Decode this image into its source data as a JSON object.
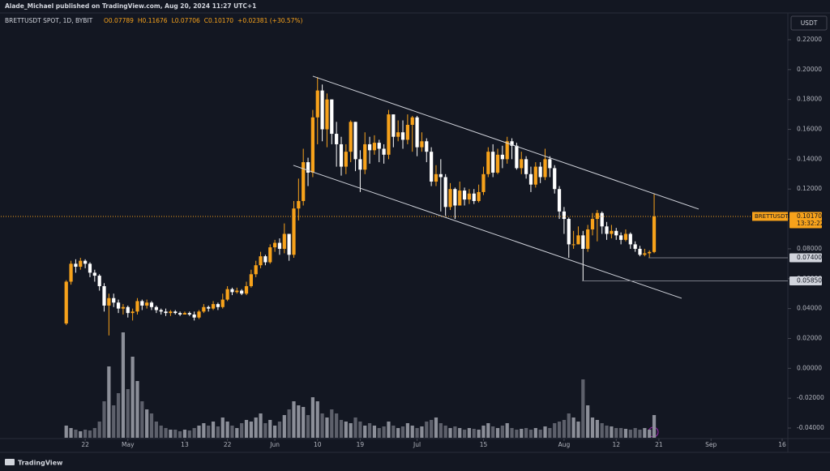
{
  "chart_data": {
    "type": "candlestick",
    "published": "Alade_Michael published on TradingView.com, Aug 20, 2024 11:27 UTC+1",
    "symbol": "BRETTUSDT SPOT, 1D, BYBIT",
    "legend_values": [
      "O0.07789",
      "H0.11676",
      "L0.07706",
      "C0.10170",
      "+0.02381 (+30.57%)"
    ],
    "currency": "USDT",
    "footer": "TradingView",
    "up_color": "#f7a21b",
    "down_color": "#ffffff",
    "volume_up_color": "#8c8f99",
    "volume_down_color": "#5d606b",
    "open": [
      0.03,
      0.058,
      0.07,
      0.068,
      0.072,
      0.07,
      0.064,
      0.062,
      0.055,
      0.042,
      0.047,
      0.044,
      0.04,
      0.041,
      0.037,
      0.038,
      0.045,
      0.042,
      0.044,
      0.041,
      0.039,
      0.038,
      0.037,
      0.038,
      0.037,
      0.036,
      0.037,
      0.036,
      0.034,
      0.038,
      0.041,
      0.04,
      0.043,
      0.041,
      0.046,
      0.053,
      0.051,
      0.052,
      0.05,
      0.055,
      0.063,
      0.069,
      0.075,
      0.071,
      0.081,
      0.084,
      0.08,
      0.09,
      0.076,
      0.107,
      0.112,
      0.138,
      0.131,
      0.168,
      0.186,
      0.16,
      0.18,
      0.157,
      0.15,
      0.135,
      0.145,
      0.165,
      0.14,
      0.133,
      0.15,
      0.146,
      0.151,
      0.147,
      0.143,
      0.17,
      0.155,
      0.158,
      0.153,
      0.163,
      0.168,
      0.148,
      0.152,
      0.145,
      0.125,
      0.13,
      0.128,
      0.108,
      0.12,
      0.109,
      0.119,
      0.113,
      0.117,
      0.112,
      0.118,
      0.13,
      0.145,
      0.131,
      0.143,
      0.14,
      0.152,
      0.149,
      0.134,
      0.14,
      0.13,
      0.123,
      0.135,
      0.128,
      0.14,
      0.134,
      0.12,
      0.105,
      0.1,
      0.083,
      0.083,
      0.089,
      0.08,
      0.093,
      0.1,
      0.104,
      0.095,
      0.09,
      0.092,
      0.089,
      0.086,
      0.09,
      0.083,
      0.08,
      0.076,
      0.077,
      0.07789
    ],
    "high": [
      0.059,
      0.072,
      0.073,
      0.074,
      0.073,
      0.071,
      0.066,
      0.063,
      0.057,
      0.05,
      0.05,
      0.046,
      0.043,
      0.042,
      0.04,
      0.047,
      0.046,
      0.046,
      0.045,
      0.042,
      0.04,
      0.04,
      0.039,
      0.039,
      0.038,
      0.038,
      0.038,
      0.038,
      0.039,
      0.043,
      0.042,
      0.045,
      0.044,
      0.05,
      0.055,
      0.054,
      0.054,
      0.053,
      0.058,
      0.066,
      0.072,
      0.078,
      0.076,
      0.083,
      0.086,
      0.087,
      0.097,
      0.09,
      0.112,
      0.127,
      0.147,
      0.141,
      0.173,
      0.195,
      0.19,
      0.184,
      0.18,
      0.165,
      0.155,
      0.15,
      0.166,
      0.165,
      0.146,
      0.158,
      0.155,
      0.156,
      0.153,
      0.15,
      0.173,
      0.17,
      0.166,
      0.166,
      0.17,
      0.169,
      0.169,
      0.158,
      0.154,
      0.148,
      0.136,
      0.14,
      0.13,
      0.124,
      0.121,
      0.125,
      0.121,
      0.12,
      0.12,
      0.123,
      0.135,
      0.148,
      0.15,
      0.147,
      0.149,
      0.155,
      0.154,
      0.151,
      0.145,
      0.142,
      0.135,
      0.138,
      0.138,
      0.147,
      0.142,
      0.136,
      0.122,
      0.108,
      0.101,
      0.092,
      0.095,
      0.092,
      0.096,
      0.104,
      0.106,
      0.105,
      0.098,
      0.096,
      0.094,
      0.091,
      0.093,
      0.091,
      0.085,
      0.082,
      0.08,
      0.079,
      0.11676
    ],
    "low": [
      0.029,
      0.056,
      0.064,
      0.066,
      0.067,
      0.061,
      0.058,
      0.052,
      0.038,
      0.022,
      0.041,
      0.037,
      0.036,
      0.034,
      0.032,
      0.036,
      0.039,
      0.04,
      0.039,
      0.037,
      0.036,
      0.035,
      0.035,
      0.036,
      0.035,
      0.036,
      0.035,
      0.032,
      0.033,
      0.037,
      0.038,
      0.039,
      0.039,
      0.04,
      0.045,
      0.049,
      0.05,
      0.049,
      0.049,
      0.054,
      0.061,
      0.067,
      0.069,
      0.07,
      0.078,
      0.076,
      0.077,
      0.072,
      0.074,
      0.099,
      0.109,
      0.122,
      0.128,
      0.15,
      0.152,
      0.148,
      0.15,
      0.135,
      0.129,
      0.13,
      0.138,
      0.132,
      0.118,
      0.13,
      0.137,
      0.143,
      0.138,
      0.137,
      0.14,
      0.148,
      0.152,
      0.147,
      0.15,
      0.145,
      0.142,
      0.145,
      0.138,
      0.122,
      0.122,
      0.105,
      0.102,
      0.106,
      0.1,
      0.11,
      0.109,
      0.11,
      0.11,
      0.111,
      0.116,
      0.128,
      0.128,
      0.13,
      0.134,
      0.137,
      0.14,
      0.133,
      0.13,
      0.127,
      0.118,
      0.121,
      0.124,
      0.126,
      0.128,
      0.117,
      0.1,
      0.09,
      0.074,
      0.08,
      0.083,
      0.0585,
      0.078,
      0.089,
      0.085,
      0.09,
      0.086,
      0.087,
      0.086,
      0.083,
      0.085,
      0.08,
      0.078,
      0.075,
      0.075,
      0.074,
      0.07706
    ],
    "close": [
      0.058,
      0.07,
      0.068,
      0.072,
      0.07,
      0.064,
      0.062,
      0.055,
      0.042,
      0.047,
      0.044,
      0.04,
      0.041,
      0.037,
      0.038,
      0.045,
      0.042,
      0.044,
      0.041,
      0.039,
      0.038,
      0.037,
      0.038,
      0.037,
      0.036,
      0.037,
      0.036,
      0.034,
      0.038,
      0.041,
      0.04,
      0.043,
      0.041,
      0.046,
      0.053,
      0.051,
      0.052,
      0.05,
      0.055,
      0.063,
      0.069,
      0.075,
      0.071,
      0.081,
      0.084,
      0.08,
      0.09,
      0.076,
      0.107,
      0.112,
      0.138,
      0.131,
      0.168,
      0.186,
      0.16,
      0.18,
      0.157,
      0.15,
      0.135,
      0.145,
      0.165,
      0.14,
      0.133,
      0.15,
      0.146,
      0.151,
      0.147,
      0.143,
      0.17,
      0.155,
      0.158,
      0.153,
      0.163,
      0.168,
      0.148,
      0.152,
      0.145,
      0.125,
      0.13,
      0.128,
      0.108,
      0.12,
      0.109,
      0.119,
      0.113,
      0.117,
      0.112,
      0.118,
      0.13,
      0.145,
      0.131,
      0.143,
      0.14,
      0.152,
      0.149,
      0.134,
      0.14,
      0.13,
      0.123,
      0.135,
      0.128,
      0.14,
      0.134,
      0.12,
      0.105,
      0.1,
      0.083,
      0.083,
      0.089,
      0.08,
      0.093,
      0.1,
      0.104,
      0.095,
      0.09,
      0.092,
      0.089,
      0.086,
      0.09,
      0.083,
      0.08,
      0.076,
      0.077,
      0.07789,
      0.1017
    ],
    "volume": [
      15,
      12,
      10,
      8,
      10,
      9,
      12,
      20,
      45,
      88,
      40,
      55,
      130,
      60,
      100,
      70,
      45,
      35,
      30,
      20,
      15,
      12,
      10,
      10,
      8,
      10,
      9,
      12,
      15,
      18,
      15,
      20,
      14,
      25,
      20,
      15,
      12,
      18,
      22,
      20,
      25,
      30,
      18,
      22,
      15,
      20,
      28,
      35,
      45,
      40,
      38,
      28,
      50,
      45,
      30,
      25,
      35,
      30,
      22,
      20,
      18,
      25,
      20,
      15,
      18,
      15,
      12,
      14,
      20,
      15,
      12,
      14,
      18,
      15,
      12,
      14,
      20,
      22,
      25,
      18,
      15,
      12,
      14,
      12,
      10,
      12,
      11,
      10,
      15,
      18,
      14,
      12,
      15,
      18,
      12,
      10,
      11,
      12,
      10,
      12,
      10,
      14,
      12,
      18,
      20,
      22,
      30,
      25,
      20,
      72,
      40,
      25,
      22,
      18,
      15,
      14,
      12,
      12,
      11,
      10,
      12,
      10,
      12,
      10,
      28
    ],
    "xlim": [
      -13.8,
      152.2
    ],
    "xticks": [
      {
        "value": 4,
        "label": "22"
      },
      {
        "value": 13,
        "label": "May"
      },
      {
        "value": 25,
        "label": "13"
      },
      {
        "value": 34,
        "label": "22"
      },
      {
        "value": 44,
        "label": "Jun"
      },
      {
        "value": 53,
        "label": "10"
      },
      {
        "value": 62,
        "label": "19"
      },
      {
        "value": 74,
        "label": "Jul"
      },
      {
        "value": 88,
        "label": "15"
      },
      {
        "value": 105,
        "label": "Aug"
      },
      {
        "value": 116,
        "label": "12"
      },
      {
        "value": 125,
        "label": "21"
      },
      {
        "value": 136,
        "label": "Sep"
      },
      {
        "value": 151,
        "label": "16"
      }
    ],
    "ylim": [
      -0.0465,
      0.2379
    ],
    "yticks": [
      {
        "value": 0.22,
        "label": "0.22000"
      },
      {
        "value": 0.2,
        "label": "0.20000"
      },
      {
        "value": 0.18,
        "label": "0.18000"
      },
      {
        "value": 0.16,
        "label": "0.16000"
      },
      {
        "value": 0.14,
        "label": "0.14000"
      },
      {
        "value": 0.12,
        "label": "0.12000"
      },
      {
        "value": 0.1,
        "label": "0.10000"
      },
      {
        "value": 0.08,
        "label": "0.08000"
      },
      {
        "value": 0.06,
        "label": "0.06000"
      },
      {
        "value": 0.04,
        "label": "0.04000"
      },
      {
        "value": 0.02,
        "label": "0.02000"
      },
      {
        "value": 0,
        "label": "0.00000"
      },
      {
        "value": -0.02,
        "label": "-0.02000"
      },
      {
        "value": -0.04,
        "label": "-0.04000"
      }
    ],
    "grid": false,
    "trend_lines": [
      {
        "x": [
          52.0,
          133.4
        ],
        "y": [
          0.1956,
          0.1066
        ]
      },
      {
        "x": [
          47.9,
          129.8
        ],
        "y": [
          0.1359,
          0.0469
        ]
      }
    ],
    "levels": [
      {
        "value": 0.074,
        "label": "0.07400",
        "start": 122.8
      },
      {
        "value": 0.0585,
        "label": "0.05850",
        "start": 108.8
      }
    ],
    "last_price": {
      "symbol": "BRETTUSDT",
      "label": "0.10170",
      "countdown": "13:32:22"
    }
  }
}
